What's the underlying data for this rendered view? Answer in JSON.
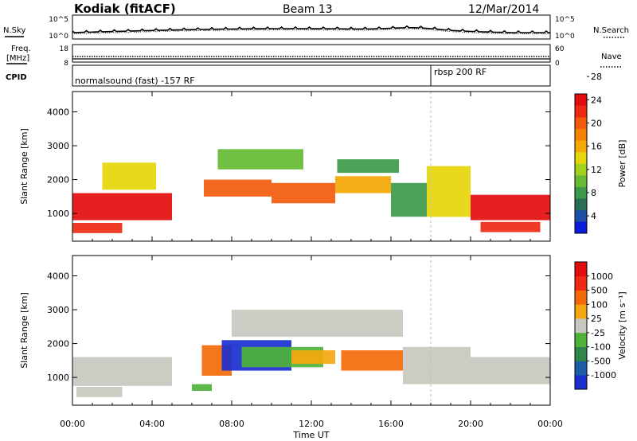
{
  "header": {
    "station": "Kodiak (fitACF)",
    "beam": "Beam 13",
    "date": "12/Mar/2014"
  },
  "nsky_panel": {
    "left_label": "N.Sky",
    "left_ticks": [
      "10^5",
      "10^0"
    ],
    "right_ticks": [
      "10^5",
      "10^0"
    ],
    "right_label": "N.Search",
    "right_legend_style": "dotted"
  },
  "freq_panel": {
    "left_label_line1": "Freq.",
    "left_label_line2": "[MHz]",
    "left_ticks": [
      "18",
      "8"
    ],
    "right_ticks": [
      "60",
      "0"
    ],
    "right_label": "Nave",
    "right_legend_style": "dotted"
  },
  "cpid_panel": {
    "label": "CPID",
    "segments": [
      {
        "start_hour": 0,
        "end_hour": 18.0,
        "text": "normalsound (fast) -157 RF"
      },
      {
        "start_hour": 18.0,
        "end_hour": 24,
        "text": "rbsp 200 RF"
      }
    ]
  },
  "chart_data": [
    {
      "type": "heatmap",
      "xlabel": "Time UT",
      "ylabel": "Slant Range [km]",
      "xlim": [
        0,
        24
      ],
      "ylim": [
        180,
        4600
      ],
      "x_ticks": [
        "00:00",
        "04:00",
        "08:00",
        "12:00",
        "16:00",
        "20:00",
        "00:00"
      ],
      "y_ticks": [
        1000,
        2000,
        3000,
        4000
      ],
      "colorbar": {
        "label": "Power [dB]",
        "ticks": [
          "4",
          "8",
          "12",
          "16",
          "20",
          "24",
          "28"
        ],
        "colors": [
          "#0a1cdc",
          "#1d4ea8",
          "#2b6e56",
          "#3c9a4a",
          "#66bb33",
          "#a4d11d",
          "#e6d60a",
          "#f3a804",
          "#f58302",
          "#f35a0c",
          "#ee2a12",
          "#e40d0d"
        ]
      },
      "regions": [
        {
          "t0": 0.0,
          "t1": 5.0,
          "r0": 800,
          "r1": 1600,
          "level": 11
        },
        {
          "t0": 0.0,
          "t1": 2.5,
          "r0": 420,
          "r1": 720,
          "level": 10
        },
        {
          "t0": 1.5,
          "t1": 4.2,
          "r0": 1700,
          "r1": 2500,
          "level": 6
        },
        {
          "t0": 6.6,
          "t1": 10.0,
          "r0": 1500,
          "r1": 2000,
          "level": 9
        },
        {
          "t0": 7.3,
          "t1": 11.6,
          "r0": 2300,
          "r1": 2900,
          "level": 4
        },
        {
          "t0": 10.0,
          "t1": 13.2,
          "r0": 1300,
          "r1": 1900,
          "level": 9
        },
        {
          "t0": 13.2,
          "t1": 16.0,
          "r0": 1600,
          "r1": 2100,
          "level": 7
        },
        {
          "t0": 13.3,
          "t1": 16.4,
          "r0": 2200,
          "r1": 2600,
          "level": 3
        },
        {
          "t0": 16.0,
          "t1": 17.8,
          "r0": 900,
          "r1": 1900,
          "level": 3
        },
        {
          "t0": 17.8,
          "t1": 20.0,
          "r0": 900,
          "r1": 2400,
          "level": 6
        },
        {
          "t0": 20.0,
          "t1": 24.0,
          "r0": 800,
          "r1": 1550,
          "level": 11
        },
        {
          "t0": 20.5,
          "t1": 23.5,
          "r0": 450,
          "r1": 750,
          "level": 10
        }
      ]
    },
    {
      "type": "heatmap",
      "xlabel": "Time UT",
      "ylabel": "Slant Range [km]",
      "xlim": [
        0,
        24
      ],
      "ylim": [
        180,
        4600
      ],
      "x_ticks": [
        "00:00",
        "04:00",
        "08:00",
        "12:00",
        "16:00",
        "20:00",
        "00:00"
      ],
      "y_ticks": [
        1000,
        2000,
        3000,
        4000
      ],
      "colorbar": {
        "label": "Velocity [m s⁻¹]",
        "ticks": [
          "1000",
          "500",
          "100",
          "25",
          "-25",
          "-100",
          "-500",
          "-1000"
        ],
        "colors": [
          "#1a2fd0",
          "#1d5ea6",
          "#2f8648",
          "#4fb33a",
          "#c8c8c0",
          "#f5a80e",
          "#f46a08",
          "#ee2a12",
          "#e40d0d"
        ]
      },
      "regions": [
        {
          "t0": 0.0,
          "t1": 5.0,
          "r0": 750,
          "r1": 1600,
          "level": 4
        },
        {
          "t0": 0.2,
          "t1": 2.5,
          "r0": 420,
          "r1": 720,
          "level": 4
        },
        {
          "t0": 6.5,
          "t1": 8.0,
          "r0": 1050,
          "r1": 1950,
          "level": 6
        },
        {
          "t0": 6.0,
          "t1": 7.0,
          "r0": 600,
          "r1": 800,
          "level": 3
        },
        {
          "t0": 7.5,
          "t1": 11.0,
          "r0": 1200,
          "r1": 2100,
          "level": 0
        },
        {
          "t0": 8.5,
          "t1": 12.6,
          "r0": 1300,
          "r1": 1900,
          "level": 3
        },
        {
          "t0": 11.0,
          "t1": 13.2,
          "r0": 1400,
          "r1": 1800,
          "level": 5
        },
        {
          "t0": 13.5,
          "t1": 16.6,
          "r0": 1200,
          "r1": 1800,
          "level": 6
        },
        {
          "t0": 8.0,
          "t1": 16.6,
          "r0": 2200,
          "r1": 3000,
          "level": 4
        },
        {
          "t0": 16.6,
          "t1": 20.0,
          "r0": 800,
          "r1": 1900,
          "level": 4
        },
        {
          "t0": 20.0,
          "t1": 24.0,
          "r0": 800,
          "r1": 1600,
          "level": 4
        }
      ]
    }
  ],
  "colors": {
    "axis": "#000000",
    "background": "#ffffff",
    "marker_line": "#bdbdbd"
  }
}
